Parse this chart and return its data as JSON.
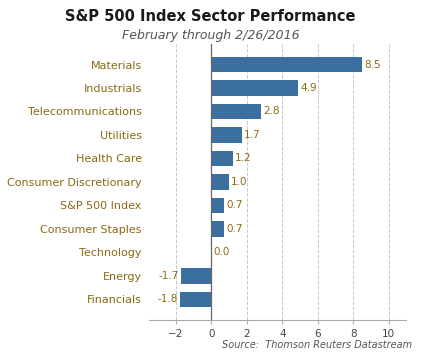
{
  "title": "S&P 500 Index Sector Performance",
  "subtitle": "February through 2/26/2016",
  "source": "Source:  Thomson Reuters Datastream",
  "categories": [
    "Materials",
    "Industrials",
    "Telecommunications",
    "Utilities",
    "Health Care",
    "Consumer Discretionary",
    "S&P 500 Index",
    "Consumer Staples",
    "Technology",
    "Energy",
    "Financials"
  ],
  "values": [
    8.5,
    4.9,
    2.8,
    1.7,
    1.2,
    1.0,
    0.7,
    0.7,
    0.0,
    -1.7,
    -1.8
  ],
  "bar_color": "#3a6f9e",
  "label_color": "#8b6914",
  "title_color": "#1a1a1a",
  "subtitle_color": "#555555",
  "source_color": "#555555",
  "category_color": "#8b6914",
  "xlim": [
    -3.5,
    11.0
  ],
  "xticks": [
    -2,
    0,
    2,
    4,
    6,
    8,
    10
  ],
  "grid_color": "#c8c8c8",
  "background_color": "#ffffff",
  "title_fontsize": 10.5,
  "subtitle_fontsize": 9.0,
  "label_fontsize": 7.5,
  "category_fontsize": 8.0,
  "source_fontsize": 7.0
}
